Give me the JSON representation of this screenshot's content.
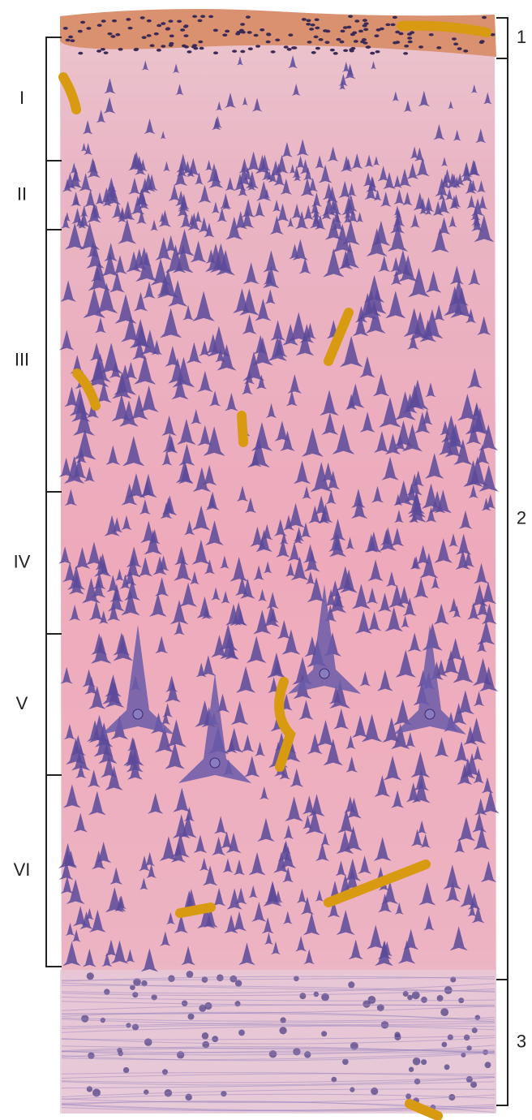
{
  "layers": [
    {
      "label": "I"
    },
    {
      "label": "II"
    },
    {
      "label": "III"
    },
    {
      "label": "IV"
    },
    {
      "label": "V"
    },
    {
      "label": "VI"
    }
  ],
  "zones": [
    {
      "label": "1"
    },
    {
      "label": "2"
    },
    {
      "label": "3"
    }
  ]
}
